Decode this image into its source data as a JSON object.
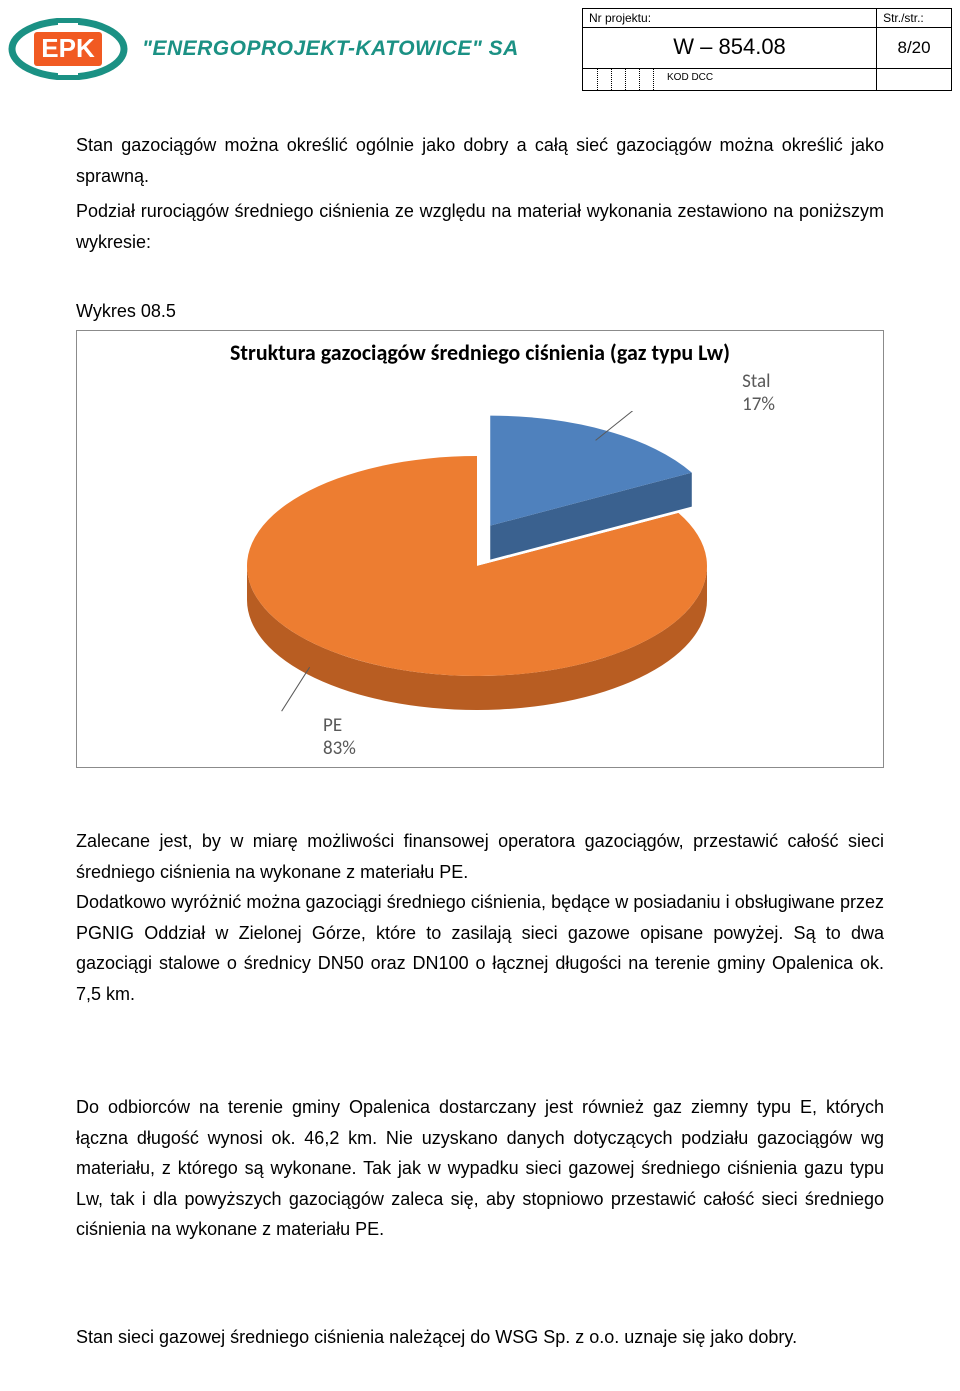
{
  "header": {
    "nr_label": "Nr projektu:",
    "nr_value": "W – 854.08",
    "str_label": "Str./str.:",
    "str_value": "8/20",
    "kod_label": "KOD DCC"
  },
  "logo": {
    "company_text": "\"ENERGOPROJEKT-KATOWICE\" SA",
    "abbrev": "EPK",
    "ring_color": "#1b9184",
    "inner_color": "#f15a22"
  },
  "paragraphs": {
    "p1": "Stan gazociągów można określić ogólnie jako dobry a całą sieć gazociągów można określić jako sprawną.",
    "p2": "Podział rurociągów średniego ciśnienia ze względu na materiał wykonania zestawiono na poniższym wykresie:",
    "wyk_label": "Wykres 08.5",
    "p3": "Zalecane jest, by w miarę możliwości finansowej operatora gazociągów, przestawić całość sieci średniego ciśnienia na wykonane z materiału PE.\nDodatkowo wyróżnić można gazociągi średniego ciśnienia, będące w posiadaniu i obsługiwane przez PGNIG Oddział w Zielonej Górze, które to zasilają sieci gazowe opisane powyżej. Są to dwa gazociągi stalowe o średnicy DN50 oraz DN100 o łącznej długości na terenie gminy Opalenica ok. 7,5 km.",
    "p4": "Do odbiorców na terenie gminy Opalenica dostarczany jest również gaz ziemny typu E, których łączna długość wynosi ok. 46,2 km. Nie uzyskano danych dotyczących podziału gazociągów wg materiału, z którego są wykonane. Tak jak w wypadku sieci gazowej średniego ciśnienia gazu typu Lw, tak i dla powyższych gazociągów zaleca się, aby stopniowo przestawić całość sieci średniego ciśnienia na wykonane z materiału PE.",
    "p5": "Stan sieci gazowej średniego ciśnienia należącej do WSG Sp. z o.o. uznaje się jako dobry."
  },
  "chart": {
    "type": "pie",
    "title": "Struktura gazociągów średniego ciśnienia (gaz typu Lw)",
    "title_fontsize": 22,
    "title_weight": "bold",
    "background_color": "#ffffff",
    "border_color": "#8b8b8b",
    "label_color": "#595959",
    "label_fontsize": 19,
    "slices": [
      {
        "name": "Stal",
        "value": 17,
        "label": "Stal",
        "percent": "17%",
        "color_top": "#4f81bd",
        "color_side": "#3a618f"
      },
      {
        "name": "PE",
        "value": 83,
        "label": "PE",
        "percent": "83%",
        "color_top": "#ed7d31",
        "color_side": "#b85d22"
      }
    ],
    "leader_color": "#595959",
    "tilt": "3d",
    "explode_slice": "Stal"
  }
}
